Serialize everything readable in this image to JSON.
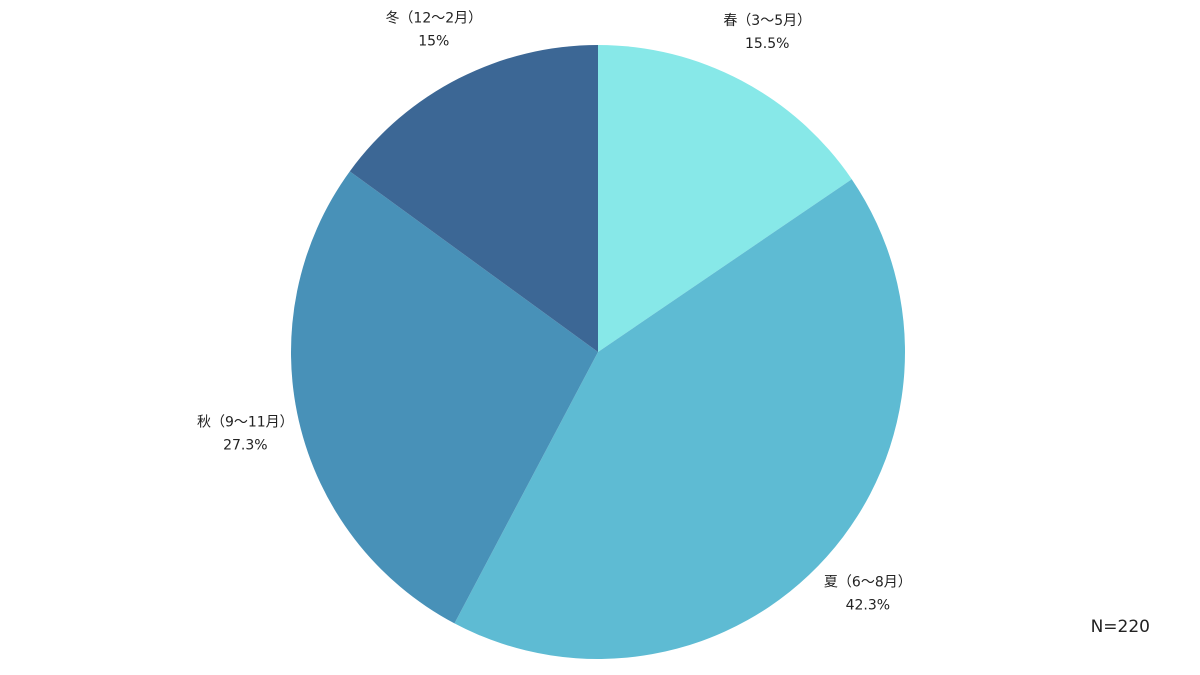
{
  "chart_data": {
    "type": "pie",
    "categories": [
      "春（3～5月）",
      "夏（6～8月）",
      "秋（9～11月）",
      "冬（12～2月）"
    ],
    "values": [
      15.5,
      42.3,
      27.3,
      15
    ],
    "value_labels": [
      "15.5%",
      "42.3%",
      "27.3%",
      "15%"
    ],
    "colors": [
      "#87e8e8",
      "#5ebbd3",
      "#4891b8",
      "#3c6795"
    ],
    "annotation": "N=220"
  }
}
